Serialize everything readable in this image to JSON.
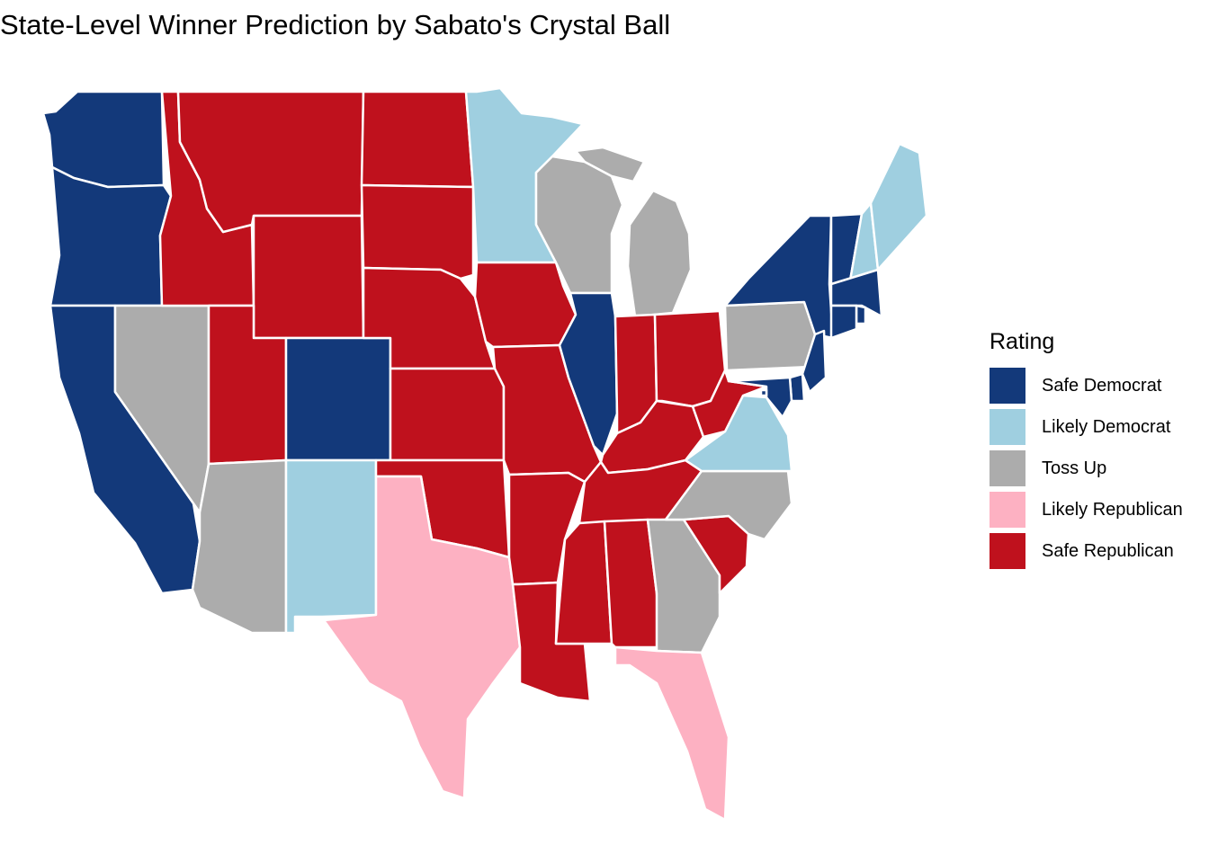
{
  "title": "State-Level Winner Prediction by Sabato's Crystal Ball",
  "legend": {
    "title": "Rating",
    "items": [
      {
        "label": "Safe Democrat",
        "color": "#13397a"
      },
      {
        "label": "Likely Democrat",
        "color": "#9fcfe0"
      },
      {
        "label": "Toss Up",
        "color": "#acacac"
      },
      {
        "label": "Likely Republican",
        "color": "#fdb1c2"
      },
      {
        "label": "Safe Republican",
        "color": "#bf111d"
      }
    ]
  },
  "states": [
    {
      "state": "Washington",
      "rating": "Safe Democrat"
    },
    {
      "state": "Oregon",
      "rating": "Safe Democrat"
    },
    {
      "state": "California",
      "rating": "Safe Democrat"
    },
    {
      "state": "Nevada",
      "rating": "Toss Up"
    },
    {
      "state": "Idaho",
      "rating": "Safe Republican"
    },
    {
      "state": "Montana",
      "rating": "Safe Republican"
    },
    {
      "state": "Wyoming",
      "rating": "Safe Republican"
    },
    {
      "state": "Utah",
      "rating": "Safe Republican"
    },
    {
      "state": "Arizona",
      "rating": "Toss Up"
    },
    {
      "state": "Colorado",
      "rating": "Safe Democrat"
    },
    {
      "state": "New Mexico",
      "rating": "Likely Democrat"
    },
    {
      "state": "North Dakota",
      "rating": "Safe Republican"
    },
    {
      "state": "South Dakota",
      "rating": "Safe Republican"
    },
    {
      "state": "Nebraska",
      "rating": "Safe Republican"
    },
    {
      "state": "Kansas",
      "rating": "Safe Republican"
    },
    {
      "state": "Oklahoma",
      "rating": "Safe Republican"
    },
    {
      "state": "Texas",
      "rating": "Likely Republican"
    },
    {
      "state": "Minnesota",
      "rating": "Likely Democrat"
    },
    {
      "state": "Iowa",
      "rating": "Safe Republican"
    },
    {
      "state": "Missouri",
      "rating": "Safe Republican"
    },
    {
      "state": "Arkansas",
      "rating": "Safe Republican"
    },
    {
      "state": "Louisiana",
      "rating": "Safe Republican"
    },
    {
      "state": "Wisconsin",
      "rating": "Toss Up"
    },
    {
      "state": "Illinois",
      "rating": "Safe Democrat"
    },
    {
      "state": "Michigan",
      "rating": "Toss Up"
    },
    {
      "state": "Indiana",
      "rating": "Safe Republican"
    },
    {
      "state": "Ohio",
      "rating": "Safe Republican"
    },
    {
      "state": "Kentucky",
      "rating": "Safe Republican"
    },
    {
      "state": "Tennessee",
      "rating": "Safe Republican"
    },
    {
      "state": "Mississippi",
      "rating": "Safe Republican"
    },
    {
      "state": "Alabama",
      "rating": "Safe Republican"
    },
    {
      "state": "Georgia",
      "rating": "Toss Up"
    },
    {
      "state": "Florida",
      "rating": "Likely Republican"
    },
    {
      "state": "South Carolina",
      "rating": "Safe Republican"
    },
    {
      "state": "North Carolina",
      "rating": "Toss Up"
    },
    {
      "state": "Virginia",
      "rating": "Likely Democrat"
    },
    {
      "state": "West Virginia",
      "rating": "Safe Republican"
    },
    {
      "state": "Pennsylvania",
      "rating": "Toss Up"
    },
    {
      "state": "New York",
      "rating": "Safe Democrat"
    },
    {
      "state": "Vermont",
      "rating": "Safe Democrat"
    },
    {
      "state": "New Hampshire",
      "rating": "Likely Democrat"
    },
    {
      "state": "Maine",
      "rating": "Likely Democrat"
    },
    {
      "state": "Massachusetts",
      "rating": "Safe Democrat"
    },
    {
      "state": "Rhode Island",
      "rating": "Safe Democrat"
    },
    {
      "state": "Connecticut",
      "rating": "Safe Democrat"
    },
    {
      "state": "New Jersey",
      "rating": "Safe Democrat"
    },
    {
      "state": "Delaware",
      "rating": "Safe Democrat"
    },
    {
      "state": "Maryland",
      "rating": "Safe Democrat"
    },
    {
      "state": "District of Columbia",
      "rating": "Safe Democrat"
    }
  ]
}
